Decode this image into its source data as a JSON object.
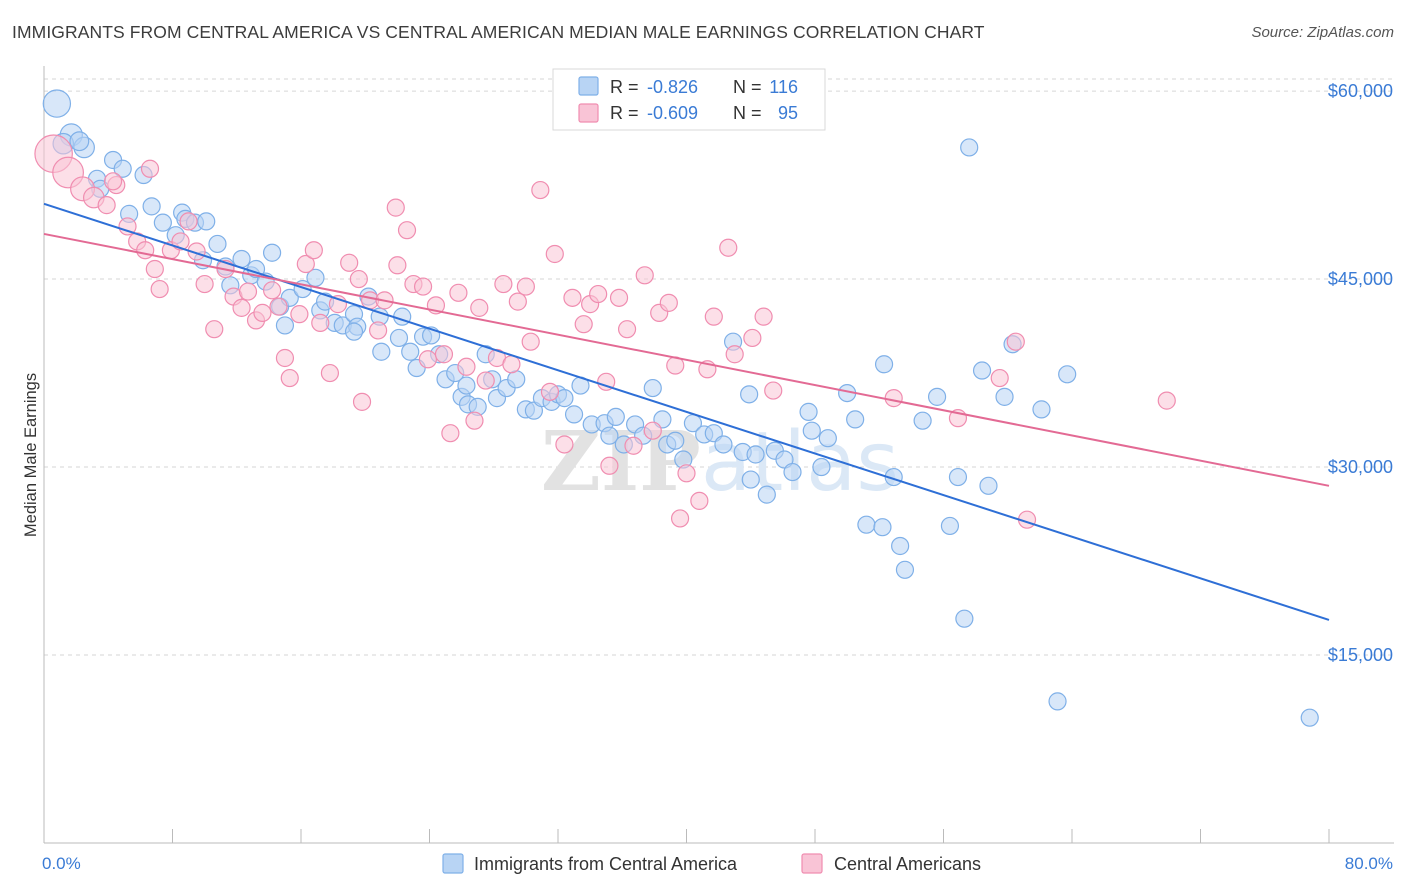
{
  "chart_data": {
    "type": "scatter",
    "title": "IMMIGRANTS FROM CENTRAL AMERICA VS CENTRAL AMERICAN MEDIAN MALE EARNINGS CORRELATION CHART",
    "source": "Source: ZipAtlas.com",
    "xlabel": "",
    "ylabel": "Median Male Earnings",
    "xlim": [
      0,
      80
    ],
    "ylim": [
      0,
      62000
    ],
    "x_tick_labels": [
      {
        "value": 0,
        "label": "0.0%"
      },
      {
        "value": 80,
        "label": "80.0%"
      }
    ],
    "y_ticks": [
      {
        "value": 15000,
        "label": "$15,000"
      },
      {
        "value": 30000,
        "label": "$30,000"
      },
      {
        "value": 45000,
        "label": "$45,000"
      },
      {
        "value": 60000,
        "label": "$60,000"
      }
    ],
    "grid": true,
    "watermark": "ZIPatlas",
    "legend_stats": [
      {
        "r_label": "R =",
        "r_value": "-0.826",
        "n_label": "N =",
        "n_value": "116"
      },
      {
        "r_label": "R =",
        "r_value": "-0.609",
        "n_label": "N =",
        "n_value": "95"
      }
    ],
    "series": [
      {
        "name": "Immigrants from Central America",
        "color": "#7fb0e8",
        "fill": "#b8d4f4",
        "line_color": "#2e6fd6",
        "trend": {
          "x0": 0,
          "y0": 51000,
          "x1": 80,
          "y1": 17800
        },
        "points": [
          [
            0.8,
            59000,
            1.6
          ],
          [
            1.7,
            56500,
            1.3
          ],
          [
            2.5,
            55500,
            1.2
          ],
          [
            3.3,
            53000,
            1
          ],
          [
            4.3,
            54500,
            1
          ],
          [
            4.9,
            53800,
            1
          ],
          [
            3.5,
            52200,
            1
          ],
          [
            5.3,
            50200,
            1
          ],
          [
            6.7,
            50800,
            1
          ],
          [
            7.4,
            49500,
            1
          ],
          [
            8.2,
            48500,
            1
          ],
          [
            8.6,
            50300,
            1
          ],
          [
            8.8,
            49800,
            1
          ],
          [
            9.4,
            49500,
            1
          ],
          [
            10.1,
            49600,
            1
          ],
          [
            9.9,
            46500,
            1
          ],
          [
            10.8,
            47800,
            1
          ],
          [
            11.3,
            46000,
            1
          ],
          [
            11.6,
            44500,
            1
          ],
          [
            12.3,
            46600,
            1
          ],
          [
            12.9,
            45300,
            1
          ],
          [
            13.8,
            44800,
            1
          ],
          [
            13.2,
            45800,
            1
          ],
          [
            14.2,
            47100,
            1
          ],
          [
            14.7,
            42800,
            1
          ],
          [
            15.3,
            43500,
            1
          ],
          [
            15.0,
            41300,
            1
          ],
          [
            16.1,
            44200,
            1
          ],
          [
            16.9,
            45100,
            1
          ],
          [
            17.2,
            42500,
            1
          ],
          [
            17.5,
            43200,
            1
          ],
          [
            18.1,
            41500,
            1
          ],
          [
            18.6,
            41300,
            1
          ],
          [
            19.3,
            42200,
            1
          ],
          [
            19.5,
            41200,
            1
          ],
          [
            20.2,
            43600,
            1
          ],
          [
            20.9,
            42000,
            1
          ],
          [
            21.0,
            39200,
            1
          ],
          [
            22.1,
            40300,
            1
          ],
          [
            22.3,
            42000,
            1
          ],
          [
            22.8,
            39200,
            1
          ],
          [
            23.2,
            37900,
            1
          ],
          [
            23.6,
            40400,
            1
          ],
          [
            24.1,
            40500,
            1
          ],
          [
            24.6,
            39000,
            1
          ],
          [
            25.0,
            37000,
            1
          ],
          [
            25.6,
            37500,
            1
          ],
          [
            26.0,
            35600,
            1
          ],
          [
            26.4,
            35000,
            1
          ],
          [
            27.0,
            34800,
            1
          ],
          [
            27.5,
            39000,
            1
          ],
          [
            27.9,
            37000,
            1
          ],
          [
            28.2,
            35500,
            1
          ],
          [
            28.8,
            36300,
            1
          ],
          [
            29.4,
            37000,
            1
          ],
          [
            30.0,
            34600,
            1
          ],
          [
            30.5,
            34500,
            1
          ],
          [
            31.0,
            35500,
            1
          ],
          [
            31.6,
            35200,
            1
          ],
          [
            32.0,
            35800,
            1
          ],
          [
            32.4,
            35500,
            1
          ],
          [
            33.0,
            34200,
            1
          ],
          [
            33.4,
            36500,
            1
          ],
          [
            34.1,
            33400,
            1
          ],
          [
            34.9,
            33500,
            1
          ],
          [
            35.2,
            32500,
            1
          ],
          [
            35.6,
            34000,
            1
          ],
          [
            36.1,
            31800,
            1
          ],
          [
            36.8,
            33400,
            1
          ],
          [
            37.3,
            32500,
            1
          ],
          [
            37.9,
            36300,
            1
          ],
          [
            38.5,
            33800,
            1
          ],
          [
            38.8,
            31800,
            1
          ],
          [
            39.3,
            32100,
            1
          ],
          [
            39.8,
            30600,
            1
          ],
          [
            40.4,
            33500,
            1
          ],
          [
            41.1,
            32600,
            1
          ],
          [
            41.7,
            32700,
            1
          ],
          [
            42.3,
            31800,
            1
          ],
          [
            42.9,
            40000,
            1
          ],
          [
            43.5,
            31200,
            1
          ],
          [
            43.9,
            35800,
            1
          ],
          [
            44.3,
            31000,
            1
          ],
          [
            45.0,
            27800,
            1
          ],
          [
            45.5,
            31300,
            1
          ],
          [
            46.1,
            30600,
            1
          ],
          [
            46.6,
            29600,
            1
          ],
          [
            47.6,
            34400,
            1
          ],
          [
            47.8,
            32900,
            1
          ],
          [
            48.4,
            30000,
            1
          ],
          [
            48.8,
            32300,
            1
          ],
          [
            50.0,
            35900,
            1
          ],
          [
            50.5,
            33800,
            1
          ],
          [
            51.2,
            25400,
            1
          ],
          [
            52.2,
            25200,
            1
          ],
          [
            52.3,
            38200,
            1
          ],
          [
            52.9,
            29200,
            1
          ],
          [
            53.3,
            23700,
            1
          ],
          [
            53.6,
            21800,
            1
          ],
          [
            54.7,
            33700,
            1
          ],
          [
            55.6,
            35600,
            1
          ],
          [
            56.4,
            25300,
            1
          ],
          [
            56.9,
            29200,
            1
          ],
          [
            57.3,
            17900,
            1
          ],
          [
            57.6,
            55500,
            1
          ],
          [
            58.4,
            37700,
            1
          ],
          [
            58.8,
            28500,
            1
          ],
          [
            59.8,
            35600,
            1
          ],
          [
            60.3,
            39800,
            1
          ],
          [
            62.1,
            34600,
            1
          ],
          [
            63.7,
            37400,
            1
          ],
          [
            63.1,
            11300,
            1
          ],
          [
            78.8,
            10000,
            1
          ],
          [
            1.2,
            55800,
            1.2
          ],
          [
            2.2,
            56000,
            1.1
          ],
          [
            6.2,
            53300,
            1
          ],
          [
            19.3,
            40800,
            1
          ],
          [
            26.3,
            36500,
            1
          ],
          [
            44.0,
            29000,
            1
          ]
        ]
      },
      {
        "name": "Central Americans",
        "color": "#f08db0",
        "fill": "#f9c4d6",
        "line_color": "#e36a94",
        "trend": {
          "x0": 0,
          "y0": 48600,
          "x1": 80,
          "y1": 28500
        },
        "points": [
          [
            0.6,
            55000,
            2.2
          ],
          [
            1.5,
            53500,
            1.8
          ],
          [
            2.4,
            52200,
            1.4
          ],
          [
            3.1,
            51500,
            1.2
          ],
          [
            4.5,
            52500,
            1
          ],
          [
            3.9,
            50900,
            1
          ],
          [
            5.2,
            49200,
            1
          ],
          [
            5.8,
            48000,
            1
          ],
          [
            6.3,
            47300,
            1
          ],
          [
            6.9,
            45800,
            1
          ],
          [
            7.2,
            44200,
            1
          ],
          [
            7.9,
            47300,
            1
          ],
          [
            8.5,
            48000,
            1
          ],
          [
            9.0,
            49600,
            1
          ],
          [
            9.5,
            47200,
            1
          ],
          [
            10.0,
            44600,
            1
          ],
          [
            10.6,
            41000,
            1
          ],
          [
            11.3,
            45800,
            1
          ],
          [
            11.8,
            43600,
            1
          ],
          [
            12.3,
            42700,
            1
          ],
          [
            12.7,
            44000,
            1
          ],
          [
            13.2,
            41700,
            1
          ],
          [
            13.6,
            42300,
            1
          ],
          [
            14.2,
            44100,
            1
          ],
          [
            14.6,
            42800,
            1
          ],
          [
            15.0,
            38700,
            1
          ],
          [
            15.3,
            37100,
            1
          ],
          [
            15.9,
            42200,
            1
          ],
          [
            16.3,
            46200,
            1
          ],
          [
            16.8,
            47300,
            1
          ],
          [
            17.2,
            41500,
            1
          ],
          [
            17.8,
            37500,
            1
          ],
          [
            18.3,
            43000,
            1
          ],
          [
            19.0,
            46300,
            1
          ],
          [
            19.8,
            35200,
            1
          ],
          [
            20.3,
            43300,
            1
          ],
          [
            20.8,
            40900,
            1
          ],
          [
            21.2,
            43300,
            1
          ],
          [
            22.0,
            46100,
            1
          ],
          [
            21.9,
            50700,
            1
          ],
          [
            22.6,
            48900,
            1
          ],
          [
            23.0,
            44600,
            1
          ],
          [
            23.6,
            44400,
            1
          ],
          [
            23.9,
            38600,
            1
          ],
          [
            24.4,
            42900,
            1
          ],
          [
            24.9,
            39000,
            1
          ],
          [
            25.3,
            32700,
            1
          ],
          [
            25.8,
            43900,
            1
          ],
          [
            26.3,
            38000,
            1
          ],
          [
            26.8,
            33700,
            1
          ],
          [
            27.1,
            42700,
            1
          ],
          [
            27.5,
            36900,
            1
          ],
          [
            28.2,
            38700,
            1
          ],
          [
            28.6,
            44600,
            1
          ],
          [
            29.1,
            38200,
            1
          ],
          [
            29.5,
            43200,
            1
          ],
          [
            30.0,
            44400,
            1
          ],
          [
            30.3,
            40000,
            1
          ],
          [
            30.9,
            52100,
            1
          ],
          [
            31.5,
            36000,
            1
          ],
          [
            31.8,
            47000,
            1
          ],
          [
            32.4,
            31800,
            1
          ],
          [
            32.9,
            43500,
            1
          ],
          [
            33.6,
            41400,
            1
          ],
          [
            34.0,
            43000,
            1
          ],
          [
            34.5,
            43800,
            1
          ],
          [
            35.0,
            36800,
            1
          ],
          [
            35.2,
            30100,
            1
          ],
          [
            35.8,
            43500,
            1
          ],
          [
            36.3,
            41000,
            1
          ],
          [
            36.7,
            31700,
            1
          ],
          [
            37.4,
            45300,
            1
          ],
          [
            37.9,
            32900,
            1
          ],
          [
            38.3,
            42300,
            1
          ],
          [
            38.9,
            43100,
            1
          ],
          [
            39.3,
            38100,
            1
          ],
          [
            39.6,
            25900,
            1
          ],
          [
            40.0,
            29500,
            1
          ],
          [
            40.8,
            27300,
            1
          ],
          [
            41.3,
            37800,
            1
          ],
          [
            41.7,
            42000,
            1
          ],
          [
            42.6,
            47500,
            1
          ],
          [
            43.0,
            39000,
            1
          ],
          [
            44.1,
            40300,
            1
          ],
          [
            44.8,
            42000,
            1
          ],
          [
            45.4,
            36100,
            1
          ],
          [
            52.9,
            35500,
            1
          ],
          [
            56.9,
            33900,
            1
          ],
          [
            59.5,
            37100,
            1
          ],
          [
            61.2,
            25800,
            1
          ],
          [
            69.9,
            35300,
            1
          ],
          [
            60.5,
            40000,
            1
          ],
          [
            6.6,
            53800,
            1
          ],
          [
            4.3,
            52800,
            1
          ],
          [
            19.6,
            45000,
            1
          ]
        ]
      }
    ],
    "legend": [
      "Immigrants from Central America",
      "Central Americans"
    ]
  }
}
